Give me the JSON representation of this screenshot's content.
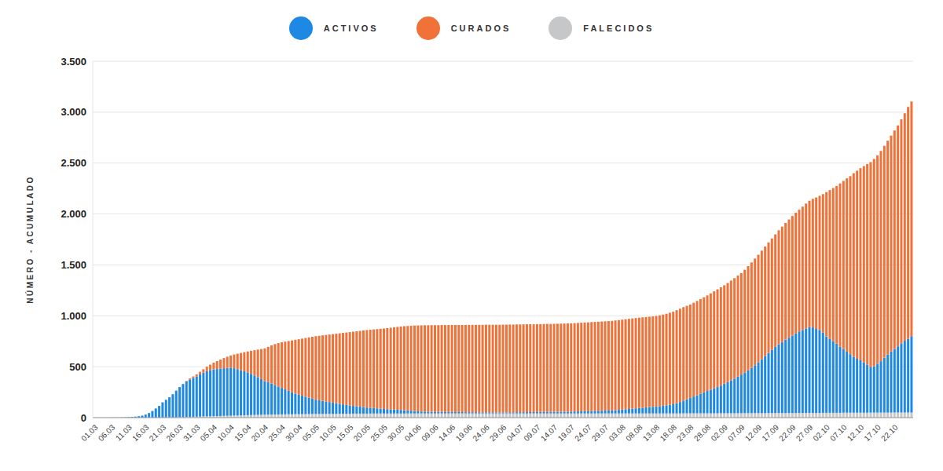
{
  "chart_data": {
    "type": "bar",
    "stacked": true,
    "grid": true,
    "legend": "top",
    "y_label": "NÚMERO - ACUMULADO",
    "ylim": [
      0,
      3500
    ],
    "yticks": [
      0,
      500,
      {
        "value": 1000,
        "label": "1.000"
      },
      {
        "value": 1500,
        "label": "1.500"
      },
      {
        "value": 2000,
        "label": "2.000"
      },
      {
        "value": 2500,
        "label": "2.500"
      },
      {
        "value": 3000,
        "label": "3.000"
      },
      {
        "value": 3500,
        "label": "3.500"
      }
    ],
    "categories": [
      "01.03",
      null,
      null,
      null,
      null,
      "06.03",
      null,
      null,
      null,
      null,
      "11.03",
      null,
      null,
      null,
      null,
      "16.03",
      null,
      null,
      null,
      null,
      "21.03",
      null,
      null,
      null,
      null,
      "26.03",
      null,
      null,
      null,
      null,
      "31.03",
      null,
      null,
      null,
      null,
      "05.04",
      null,
      null,
      null,
      null,
      "10.04",
      null,
      null,
      null,
      null,
      "15.04",
      null,
      null,
      null,
      null,
      "20.04",
      null,
      null,
      null,
      null,
      "25.04",
      null,
      null,
      null,
      null,
      "30.04",
      null,
      null,
      null,
      null,
      "05.05",
      null,
      null,
      null,
      null,
      "10.05",
      null,
      null,
      null,
      null,
      "15.05",
      null,
      null,
      null,
      null,
      "20.05",
      null,
      null,
      null,
      null,
      "25.05",
      null,
      null,
      null,
      null,
      "30.05",
      null,
      null,
      null,
      null,
      "04.06",
      null,
      null,
      null,
      null,
      "09.06",
      null,
      null,
      null,
      null,
      "14.06",
      null,
      null,
      null,
      null,
      "19.06",
      null,
      null,
      null,
      null,
      "24.06",
      null,
      null,
      null,
      null,
      "29.06",
      null,
      null,
      null,
      null,
      "04.07",
      null,
      null,
      null,
      null,
      "09.07",
      null,
      null,
      null,
      null,
      "14.07",
      null,
      null,
      null,
      null,
      "19.07",
      null,
      null,
      null,
      null,
      "24.07",
      null,
      null,
      null,
      null,
      "29.07",
      null,
      null,
      null,
      null,
      "03.08",
      null,
      null,
      null,
      null,
      "08.08",
      null,
      null,
      null,
      null,
      "13.08",
      null,
      null,
      null,
      null,
      "18.08",
      null,
      null,
      null,
      null,
      "23.08",
      null,
      null,
      null,
      null,
      "28.08",
      null,
      null,
      null,
      null,
      "02.09",
      null,
      null,
      null,
      null,
      "07.09",
      null,
      null,
      null,
      null,
      "12.09",
      null,
      null,
      null,
      null,
      "17.09",
      null,
      null,
      null,
      null,
      "22.09",
      null,
      null,
      null,
      null,
      "27.09",
      null,
      null,
      null,
      null,
      "02.10",
      null,
      null,
      null,
      null,
      "07.10",
      null,
      null,
      null,
      null,
      "12.10",
      null,
      null,
      null,
      null,
      "17.10",
      null,
      null,
      null,
      null,
      "22.10",
      null,
      null,
      null,
      null,
      null
    ],
    "series": [
      {
        "name": "ACTIVOS",
        "color": "#1e88e5",
        "values": [
          0,
          0,
          0,
          0,
          0,
          1,
          1,
          1,
          2,
          3,
          5,
          7,
          10,
          14,
          20,
          30,
          45,
          65,
          90,
          115,
          149,
          174,
          198,
          228,
          262,
          296,
          325,
          349,
          368,
          382,
          396,
          415,
          430,
          445,
          455,
          460,
          462,
          465,
          468,
          470,
          472,
          465,
          455,
          445,
          432,
          420,
          405,
          388,
          370,
          350,
          330,
          318,
          305,
          290,
          275,
          260,
          245,
          230,
          215,
          202,
          190,
          180,
          170,
          160,
          150,
          140,
          134,
          128,
          122,
          116,
          110,
          104,
          98,
          92,
          86,
          80,
          76,
          72,
          68,
          64,
          60,
          57,
          54,
          51,
          48,
          45,
          43,
          41,
          39,
          37,
          35,
          32,
          30,
          27,
          24,
          21,
          19,
          18,
          17,
          16,
          15,
          15,
          15,
          14,
          14,
          14,
          13,
          13,
          13,
          12,
          12,
          12,
          12,
          11,
          11,
          11,
          11,
          11,
          10,
          10,
          10,
          10,
          11,
          11,
          12,
          12,
          12,
          13,
          13,
          13,
          14,
          14,
          14,
          15,
          15,
          15,
          16,
          16,
          17,
          17,
          18,
          19,
          20,
          21,
          22,
          23,
          24,
          25,
          26,
          27,
          28,
          29,
          30,
          32,
          35,
          38,
          41,
          44,
          47,
          50,
          53,
          56,
          59,
          62,
          65,
          68,
          72,
          76,
          80,
          85,
          90,
          100,
          112,
          125,
          138,
          150,
          165,
          178,
          192,
          206,
          220,
          232,
          245,
          258,
          272,
          290,
          305,
          322,
          340,
          360,
          380,
          400,
          420,
          445,
          470,
          500,
          530,
          560,
          590,
          620,
          650,
          675,
          700,
          720,
          740,
          760,
          780,
          800,
          815,
          830,
          845,
          840,
          825,
          815,
          790,
          750,
          725,
          705,
          680,
          650,
          625,
          600,
          575,
          550,
          530,
          515,
          495,
          470,
          445,
          455,
          480,
          505,
          540,
          570,
          600,
          625,
          650,
          680,
          705,
          725,
          750
        ]
      },
      {
        "name": "CURADOS",
        "color": "#f07238",
        "values": [
          0,
          0,
          0,
          0,
          0,
          0,
          0,
          0,
          0,
          0,
          0,
          0,
          0,
          0,
          0,
          0,
          0,
          0,
          0,
          0,
          0,
          0,
          0,
          0,
          0,
          0,
          0,
          5,
          10,
          15,
          20,
          25,
          34,
          43,
          52,
          66,
          78,
          89,
          100,
          110,
          119,
          135,
          152,
          168,
          188,
          206,
          226,
          248,
          271,
          296,
          321,
          347,
          375,
          401,
          426,
          448,
          469,
          489,
          510,
          528,
          546,
          561,
          577,
          593,
          608,
          624,
          634,
          643,
          653,
          663,
          673,
          682,
          692,
          702,
          712,
          722,
          729,
          737,
          745,
          753,
          761,
          766,
          772,
          778,
          784,
          790,
          796,
          802,
          808,
          814,
          820,
          826,
          829,
          834,
          839,
          843,
          846,
          848,
          849,
          851,
          852,
          852,
          853,
          854,
          854,
          855,
          856,
          856,
          856,
          857,
          858,
          858,
          858,
          859,
          859,
          860,
          860,
          860,
          861,
          861,
          862,
          862,
          862,
          862,
          862,
          862,
          863,
          863,
          863,
          863,
          863,
          863,
          864,
          864,
          864,
          865,
          865,
          866,
          866,
          867,
          867,
          868,
          869,
          870,
          871,
          872,
          873,
          874,
          875,
          876,
          877,
          878,
          879,
          881,
          882,
          883,
          884,
          885,
          886,
          887,
          888,
          888,
          888,
          888,
          888,
          889,
          892,
          895,
          899,
          904,
          909,
          914,
          917,
          918,
          918,
          918,
          921,
          926,
          930,
          934,
          938,
          946,
          953,
          960,
          965,
          967,
          974,
          981,
          987,
          992,
          997,
          1008,
          1024,
          1035,
          1048,
          1056,
          1066,
          1076,
          1085,
          1095,
          1105,
          1120,
          1131,
          1147,
          1161,
          1175,
          1186,
          1196,
          1211,
          1226,
          1239,
          1262,
          1291,
          1317,
          1358,
          1418,
          1463,
          1503,
          1548,
          1603,
          1652,
          1702,
          1749,
          1802,
          1847,
          1887,
          1927,
          1972,
          2016,
          2036,
          2046,
          2066,
          2081,
          2101,
          2121,
          2145,
          2170,
          2200,
          2235,
          2275,
          2305
        ]
      },
      {
        "name": "FALECIDOS",
        "color": "#c6c7c9",
        "values": [
          0,
          0,
          0,
          0,
          0,
          0,
          0,
          0,
          0,
          0,
          0,
          0,
          0,
          0,
          0,
          0,
          0,
          0,
          0,
          0,
          1,
          1,
          2,
          2,
          3,
          4,
          5,
          6,
          7,
          8,
          9,
          10,
          11,
          12,
          13,
          14,
          15,
          16,
          17,
          18,
          19,
          20,
          21,
          22,
          23,
          24,
          25,
          26,
          27,
          28,
          29,
          30,
          30,
          31,
          31,
          32,
          32,
          33,
          33,
          34,
          34,
          35,
          35,
          35,
          36,
          36,
          36,
          37,
          37,
          37,
          37,
          38,
          38,
          38,
          38,
          38,
          39,
          39,
          39,
          39,
          39,
          40,
          40,
          40,
          40,
          40,
          40,
          40,
          40,
          40,
          40,
          40,
          41,
          41,
          41,
          41,
          41,
          41,
          41,
          41,
          41,
          41,
          41,
          41,
          41,
          41,
          41,
          41,
          41,
          41,
          41,
          41,
          41,
          41,
          41,
          41,
          41,
          41,
          41,
          41,
          41,
          41,
          41,
          41,
          41,
          41,
          41,
          41,
          41,
          41,
          41,
          41,
          41,
          41,
          41,
          41,
          41,
          41,
          41,
          41,
          41,
          41,
          41,
          41,
          41,
          41,
          41,
          41,
          41,
          41,
          41,
          41,
          41,
          41,
          41,
          41,
          41,
          41,
          41,
          41,
          41,
          41,
          41,
          41,
          41,
          41,
          41,
          41,
          41,
          41,
          41,
          41,
          41,
          42,
          42,
          42,
          42,
          42,
          42,
          42,
          42,
          42,
          42,
          42,
          43,
          43,
          43,
          43,
          43,
          43,
          43,
          44,
          44,
          44,
          44,
          44,
          44,
          44,
          45,
          45,
          45,
          45,
          45,
          45,
          45,
          45,
          46,
          46,
          46,
          46,
          46,
          46,
          46,
          46,
          47,
          47,
          47,
          47,
          47,
          47,
          48,
          48,
          48,
          48,
          48,
          48,
          48,
          48,
          49,
          49,
          49,
          49,
          49,
          49,
          49,
          50,
          50,
          50,
          50,
          50,
          50
        ]
      }
    ]
  }
}
